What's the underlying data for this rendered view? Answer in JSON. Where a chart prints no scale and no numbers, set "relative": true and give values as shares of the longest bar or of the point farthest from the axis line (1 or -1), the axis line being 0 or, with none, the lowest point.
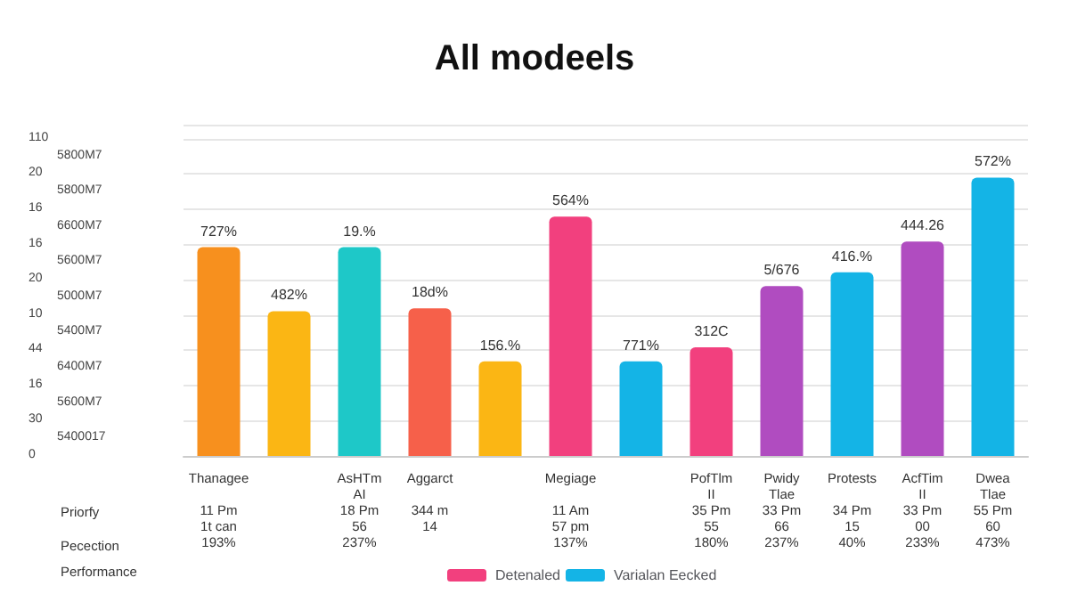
{
  "chart_data": {
    "type": "bar",
    "title": "All modeels",
    "relative": true,
    "categories": [
      "Thanagee\n \n11 Pm\n1t can\n193%",
      null,
      "AsHTm\nAI\n18 Pm\n56\n237%",
      "Aggarct\n \n344 m\n14",
      null,
      "Megiage\n \n11 Am\n57 pm\n137%",
      null,
      "PofTlm\nII\n35 Pm\n55\n180%",
      "Pwidy\nTlae\n33 Pm\n66\n237%",
      "Protests\n \n34 Pm\n15\n40%",
      "AcfTim\nII\n33 Pm\n00\n233%",
      "Dwea\nTlae\n55 Pm\n60\n473%"
    ],
    "series": [
      {
        "name": "Detenaled",
        "color": "#f2407e",
        "values": [
          null,
          null,
          null,
          null,
          null,
          0.86,
          null,
          0.39,
          null,
          null,
          null,
          null
        ]
      },
      {
        "name": "Varialan Eecked",
        "color": "#14b4e6",
        "values": [
          null,
          null,
          null,
          null,
          null,
          null,
          0.34,
          null,
          null,
          0.66,
          null,
          1
        ]
      },
      {
        "color": "#f7901e",
        "values": [
          0.75,
          null,
          null,
          null,
          null,
          null,
          null,
          null,
          null,
          null,
          null,
          null
        ]
      },
      {
        "color": "#fbb614",
        "values": [
          null,
          0.52,
          null,
          null,
          0.34,
          null,
          null,
          null,
          null,
          null,
          null,
          null
        ]
      },
      {
        "color": "#1ec8c8",
        "values": [
          null,
          null,
          0.75,
          null,
          null,
          null,
          null,
          null,
          null,
          null,
          null,
          null
        ]
      },
      {
        "color": "#f6604a",
        "values": [
          null,
          null,
          null,
          0.53,
          null,
          null,
          null,
          null,
          null,
          null,
          null,
          null
        ]
      },
      {
        "color": "#b04cc0",
        "values": [
          null,
          null,
          null,
          null,
          null,
          null,
          null,
          null,
          0.61,
          null,
          0.77,
          null
        ]
      }
    ],
    "value_labels": [
      "727%",
      "482%",
      "19.%",
      "18d%",
      "156.%",
      "564%",
      "771%",
      "312C",
      "5/676",
      "416.%",
      "444.26",
      "572%"
    ],
    "grid": "y",
    "legend": "bottom",
    "annotations": [
      "Priorfy",
      "Pecection",
      "Performance",
      "110",
      "5800M7",
      "20",
      "5800M7",
      "16",
      "6600M7",
      "16",
      "5600M7",
      "20",
      "5000M7",
      "10",
      "5400M7",
      "44",
      "6400M7",
      "16",
      "5600M7",
      "30",
      "5400017",
      "0"
    ]
  }
}
